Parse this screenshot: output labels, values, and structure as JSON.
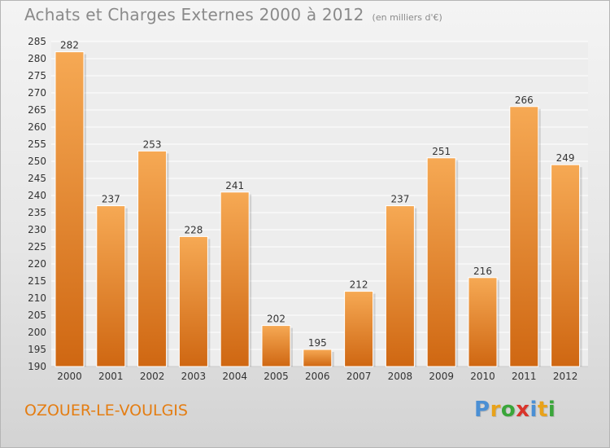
{
  "header": {
    "title": "Achats et Charges Externes 2000 à 2012",
    "unit": "(en milliers d'€)"
  },
  "footer": {
    "city": "OZOUER-LE-VOULGIS",
    "logo": [
      "P",
      "r",
      "o",
      "x",
      "i",
      "t",
      "i"
    ],
    "logo_colors": [
      "#4a8fd4",
      "#e8a21a",
      "#3aa63a",
      "#d9342b",
      "#4a8fd4",
      "#e8a21a",
      "#3aa63a"
    ]
  },
  "colors": {
    "bar_top": "#f6a954",
    "bar_bottom": "#cf6712",
    "grid": "#ffffff",
    "axis_text": "#333333",
    "title": "#8a8a8a",
    "city": "#e47d12"
  },
  "chart_data": {
    "type": "bar",
    "categories": [
      "2000",
      "2001",
      "2002",
      "2003",
      "2004",
      "2005",
      "2006",
      "2007",
      "2008",
      "2009",
      "2010",
      "2011",
      "2012"
    ],
    "values": [
      282,
      237,
      253,
      228,
      241,
      202,
      195,
      212,
      237,
      251,
      216,
      266,
      249
    ],
    "title": "Achats et Charges Externes 2000 à 2012",
    "subtitle": "(en milliers d'€)",
    "ylim": [
      190,
      285
    ],
    "yticks": [
      190,
      195,
      200,
      205,
      210,
      215,
      220,
      225,
      230,
      235,
      240,
      245,
      250,
      255,
      260,
      265,
      270,
      275,
      280,
      285
    ],
    "grid": true
  }
}
